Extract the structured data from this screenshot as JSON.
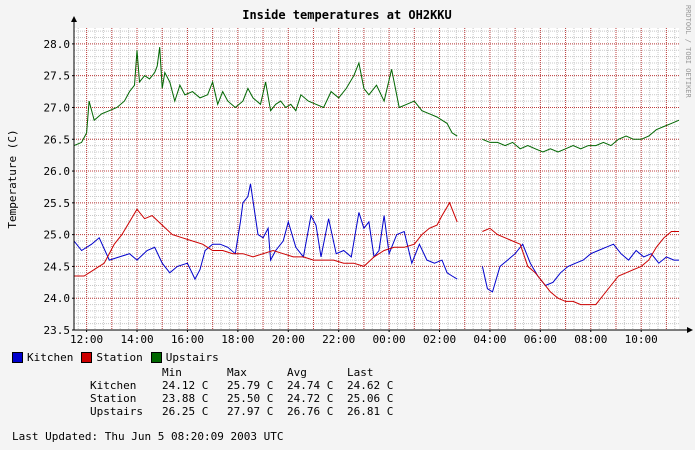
{
  "chart_data": {
    "type": "line",
    "title": "Inside temperatures at OH2KKU",
    "ylabel": "Temperature (C)",
    "xlabel": "",
    "watermark": "RRDTOOL / TOBI OETIKER",
    "ylim": [
      23.5,
      28.25
    ],
    "xlim": [
      11.5,
      35.5
    ],
    "yticks": [
      "23.5",
      "24.0",
      "24.5",
      "25.0",
      "25.5",
      "26.0",
      "26.5",
      "27.0",
      "27.5",
      "28.0"
    ],
    "xticks": [
      {
        "x": 12,
        "label": "12:00"
      },
      {
        "x": 14,
        "label": "14:00"
      },
      {
        "x": 16,
        "label": "16:00"
      },
      {
        "x": 18,
        "label": "18:00"
      },
      {
        "x": 20,
        "label": "20:00"
      },
      {
        "x": 22,
        "label": "22:00"
      },
      {
        "x": 24,
        "label": "00:00"
      },
      {
        "x": 26,
        "label": "02:00"
      },
      {
        "x": 28,
        "label": "04:00"
      },
      {
        "x": 30,
        "label": "06:00"
      },
      {
        "x": 32,
        "label": "08:00"
      },
      {
        "x": 34,
        "label": "10:00"
      }
    ],
    "grid": true,
    "legend_position": "bottom-left",
    "series": [
      {
        "name": "Kitchen",
        "color": "#0000cc",
        "x": [
          11.5,
          11.8,
          12.2,
          12.5,
          12.9,
          13.3,
          13.7,
          14.0,
          14.4,
          14.7,
          15.0,
          15.3,
          15.6,
          16.0,
          16.3,
          16.5,
          16.7,
          17.0,
          17.3,
          17.6,
          17.9,
          18.1,
          18.2,
          18.4,
          18.5,
          18.8,
          19.0,
          19.2,
          19.3,
          19.5,
          19.8,
          20.0,
          20.3,
          20.6,
          20.9,
          21.1,
          21.3,
          21.6,
          21.9,
          22.2,
          22.5,
          22.8,
          23.0,
          23.2,
          23.4,
          23.6,
          23.8,
          24.0,
          24.3,
          24.6,
          24.9,
          25.2,
          25.5,
          25.8,
          26.1,
          26.3,
          26.5,
          26.7,
          null,
          27.7,
          27.9,
          28.1,
          28.4,
          28.7,
          29.0,
          29.3,
          29.6,
          29.9,
          30.2,
          30.5,
          30.8,
          31.1,
          31.4,
          31.7,
          32.0,
          32.3,
          32.6,
          32.9,
          33.2,
          33.5,
          33.8,
          34.1,
          34.4,
          34.7,
          35.0,
          35.3,
          35.5
        ],
        "values": [
          24.9,
          24.75,
          24.85,
          24.95,
          24.6,
          24.65,
          24.7,
          24.6,
          24.75,
          24.8,
          24.55,
          24.4,
          24.5,
          24.55,
          24.3,
          24.45,
          24.75,
          24.85,
          24.85,
          24.8,
          24.7,
          25.2,
          25.5,
          25.6,
          25.8,
          25.0,
          24.95,
          25.1,
          24.6,
          24.75,
          24.9,
          25.2,
          24.8,
          24.65,
          25.3,
          25.15,
          24.65,
          25.25,
          24.7,
          24.75,
          24.65,
          25.35,
          25.1,
          25.2,
          24.65,
          24.75,
          25.3,
          24.7,
          25.0,
          25.05,
          24.55,
          24.85,
          24.6,
          24.55,
          24.6,
          24.4,
          24.35,
          24.3,
          null,
          24.5,
          24.15,
          24.1,
          24.5,
          24.6,
          24.7,
          24.85,
          24.55,
          24.35,
          24.2,
          24.25,
          24.4,
          24.5,
          24.55,
          24.6,
          24.7,
          24.75,
          24.8,
          24.85,
          24.7,
          24.6,
          24.75,
          24.65,
          24.7,
          24.55,
          24.65,
          24.6,
          24.6
        ]
      },
      {
        "name": "Station",
        "color": "#cc0000",
        "x": [
          11.5,
          11.9,
          12.3,
          12.7,
          13.1,
          13.4,
          13.7,
          14.0,
          14.3,
          14.6,
          15.0,
          15.4,
          15.8,
          16.2,
          16.6,
          17.0,
          17.4,
          17.8,
          18.2,
          18.6,
          19.0,
          19.4,
          19.8,
          20.2,
          20.6,
          21.0,
          21.4,
          21.8,
          22.2,
          22.6,
          23.0,
          23.4,
          23.8,
          24.2,
          24.6,
          25.0,
          25.3,
          25.6,
          25.9,
          26.1,
          26.4,
          26.7,
          null,
          27.7,
          28.0,
          28.3,
          28.6,
          28.9,
          29.2,
          29.5,
          29.8,
          30.1,
          30.4,
          30.7,
          31.0,
          31.3,
          31.6,
          31.9,
          32.2,
          32.5,
          32.8,
          33.1,
          33.4,
          33.7,
          34.0,
          34.3,
          34.6,
          34.9,
          35.2,
          35.5
        ],
        "values": [
          24.35,
          24.35,
          24.45,
          24.55,
          24.85,
          25.0,
          25.2,
          25.4,
          25.25,
          25.3,
          25.15,
          25.0,
          24.95,
          24.9,
          24.85,
          24.75,
          24.75,
          24.7,
          24.7,
          24.65,
          24.7,
          24.75,
          24.7,
          24.65,
          24.65,
          24.6,
          24.6,
          24.6,
          24.55,
          24.55,
          24.5,
          24.65,
          24.75,
          24.8,
          24.8,
          24.85,
          25.0,
          25.1,
          25.15,
          25.3,
          25.5,
          25.2,
          null,
          25.05,
          25.1,
          25.0,
          24.95,
          24.9,
          24.85,
          24.5,
          24.4,
          24.25,
          24.1,
          24.0,
          23.95,
          23.95,
          23.9,
          23.9,
          23.9,
          24.05,
          24.2,
          24.35,
          24.4,
          24.45,
          24.5,
          24.6,
          24.8,
          24.95,
          25.05,
          25.05
        ]
      },
      {
        "name": "Upstairs",
        "color": "#006600",
        "x": [
          11.5,
          11.8,
          12.0,
          12.1,
          12.3,
          12.6,
          12.9,
          13.2,
          13.5,
          13.7,
          13.9,
          14.0,
          14.1,
          14.3,
          14.5,
          14.7,
          14.8,
          14.9,
          15.0,
          15.1,
          15.3,
          15.5,
          15.7,
          15.9,
          16.2,
          16.5,
          16.8,
          17.0,
          17.2,
          17.4,
          17.6,
          17.9,
          18.2,
          18.4,
          18.6,
          18.9,
          19.1,
          19.3,
          19.5,
          19.7,
          19.9,
          20.1,
          20.3,
          20.5,
          20.8,
          21.1,
          21.4,
          21.7,
          22.0,
          22.3,
          22.6,
          22.8,
          23.0,
          23.2,
          23.5,
          23.8,
          24.1,
          24.4,
          24.7,
          25.0,
          25.3,
          25.6,
          25.9,
          26.1,
          26.3,
          26.5,
          26.7,
          null,
          27.7,
          28.0,
          28.3,
          28.6,
          28.9,
          29.2,
          29.5,
          29.8,
          30.1,
          30.4,
          30.7,
          31.0,
          31.3,
          31.6,
          31.9,
          32.2,
          32.5,
          32.8,
          33.1,
          33.4,
          33.7,
          34.0,
          34.3,
          34.6,
          34.9,
          35.2,
          35.5
        ],
        "values": [
          26.4,
          26.45,
          26.6,
          27.1,
          26.8,
          26.9,
          26.95,
          27.0,
          27.1,
          27.25,
          27.35,
          27.9,
          27.4,
          27.5,
          27.45,
          27.55,
          27.65,
          27.95,
          27.3,
          27.55,
          27.4,
          27.1,
          27.35,
          27.2,
          27.25,
          27.15,
          27.2,
          27.4,
          27.05,
          27.25,
          27.1,
          27.0,
          27.1,
          27.3,
          27.15,
          27.05,
          27.4,
          26.95,
          27.05,
          27.1,
          27.0,
          27.05,
          26.95,
          27.2,
          27.1,
          27.05,
          27.0,
          27.25,
          27.15,
          27.3,
          27.5,
          27.7,
          27.3,
          27.2,
          27.35,
          27.1,
          27.6,
          27.0,
          27.05,
          27.1,
          26.95,
          26.9,
          26.85,
          26.8,
          26.75,
          26.6,
          26.55,
          null,
          26.5,
          26.45,
          26.45,
          26.4,
          26.45,
          26.35,
          26.4,
          26.35,
          26.3,
          26.35,
          26.3,
          26.35,
          26.4,
          26.35,
          26.4,
          26.4,
          26.45,
          26.4,
          26.5,
          26.55,
          26.5,
          26.5,
          26.55,
          26.65,
          26.7,
          26.75,
          26.8
        ]
      }
    ]
  },
  "legend": [
    {
      "label": "Kitchen",
      "color": "#0000cc"
    },
    {
      "label": "Station",
      "color": "#cc0000"
    },
    {
      "label": "Upstairs",
      "color": "#006600"
    }
  ],
  "stats": {
    "headers": [
      "Min",
      "Max",
      "Avg",
      "Last"
    ],
    "rows": [
      {
        "name": "Kitchen",
        "min": "24.12 C",
        "max": "25.79 C",
        "avg": "24.74 C",
        "last": "24.62 C"
      },
      {
        "name": "Station",
        "min": "23.88 C",
        "max": "25.50 C",
        "avg": "24.72 C",
        "last": "25.06 C"
      },
      {
        "name": "Upstairs",
        "min": "26.25 C",
        "max": "27.97 C",
        "avg": "26.76 C",
        "last": "26.81 C"
      }
    ]
  },
  "footer": "Last Updated: Thu Jun  5 08:20:09 2003 UTC"
}
